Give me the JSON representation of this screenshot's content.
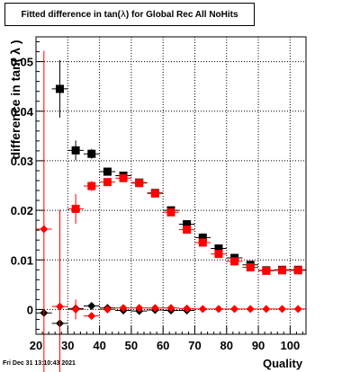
{
  "title": "Fitted difference in tan( λ ) for Global Rec All NoHits",
  "title_parts": {
    "pre": "Fitted difference in tan(",
    "lambda": " λ ",
    "post": ") for Global Rec All NoHits"
  },
  "footer": "Fri Dec 31 13:10:43 2021",
  "chart_data": {
    "type": "scatter",
    "xlabel": "Quality",
    "ylabel": "difference in tan( λ )",
    "xlim": [
      20,
      105
    ],
    "ylim": [
      -0.005,
      0.055
    ],
    "xticks": [
      "20",
      "30",
      "40",
      "50",
      "60",
      "70",
      "80",
      "90",
      "100"
    ],
    "yticks": [
      "0",
      "0.01",
      "0.02",
      "0.03",
      "0.04",
      "0.05"
    ],
    "grid": true,
    "series": [
      {
        "marker": "square",
        "color": "#000000",
        "points": [
          {
            "x": 27.5,
            "y": 0.0445,
            "yerr": 0.0058
          },
          {
            "x": 32.5,
            "y": 0.0321,
            "yerr": 0.002
          },
          {
            "x": 37.5,
            "y": 0.0314,
            "yerr": 0.001
          },
          {
            "x": 42.5,
            "y": 0.0278,
            "yerr": 0.0006
          },
          {
            "x": 47.5,
            "y": 0.027,
            "yerr": 0.0005
          },
          {
            "x": 52.5,
            "y": 0.0256,
            "yerr": 0.0005
          },
          {
            "x": 57.5,
            "y": 0.0235,
            "yerr": 0.0004
          },
          {
            "x": 62.5,
            "y": 0.02,
            "yerr": 0.0004
          },
          {
            "x": 67.5,
            "y": 0.0172,
            "yerr": 0.0004
          },
          {
            "x": 72.5,
            "y": 0.0145,
            "yerr": 0.0003
          },
          {
            "x": 77.5,
            "y": 0.0123,
            "yerr": 0.0003
          },
          {
            "x": 82.5,
            "y": 0.0104,
            "yerr": 0.0003
          },
          {
            "x": 87.5,
            "y": 0.009,
            "yerr": 0.0003
          },
          {
            "x": 92.5,
            "y": 0.0079,
            "yerr": 0.0003
          },
          {
            "x": 97.5,
            "y": 0.008,
            "yerr": 0.0003
          },
          {
            "x": 102.5,
            "y": 0.008,
            "yerr": 0.0003
          }
        ]
      },
      {
        "marker": "square",
        "color": "#ff0000",
        "points": [
          {
            "x": 32.5,
            "y": 0.0203,
            "yerr": 0.003
          },
          {
            "x": 37.5,
            "y": 0.0249,
            "yerr": 0.001
          },
          {
            "x": 42.5,
            "y": 0.0257,
            "yerr": 0.0005
          },
          {
            "x": 47.5,
            "y": 0.0265,
            "yerr": 0.0005
          },
          {
            "x": 52.5,
            "y": 0.0255,
            "yerr": 0.0004
          },
          {
            "x": 57.5,
            "y": 0.0234,
            "yerr": 0.0004
          },
          {
            "x": 62.5,
            "y": 0.0196,
            "yerr": 0.0004
          },
          {
            "x": 67.5,
            "y": 0.0161,
            "yerr": 0.0004
          },
          {
            "x": 72.5,
            "y": 0.0135,
            "yerr": 0.0003
          },
          {
            "x": 77.5,
            "y": 0.0112,
            "yerr": 0.0003
          },
          {
            "x": 82.5,
            "y": 0.0097,
            "yerr": 0.0003
          },
          {
            "x": 87.5,
            "y": 0.0085,
            "yerr": 0.0003
          },
          {
            "x": 92.5,
            "y": 0.0078,
            "yerr": 0.0003
          },
          {
            "x": 97.5,
            "y": 0.0079,
            "yerr": 0.0003
          },
          {
            "x": 102.5,
            "y": 0.0079,
            "yerr": 0.0003
          }
        ]
      },
      {
        "marker": "diamond",
        "color": "#000000",
        "points": [
          {
            "x": 22.5,
            "y": -0.0007,
            "yerr": 0.0
          },
          {
            "x": 27.5,
            "y": -0.0028,
            "yerr": 0.0006
          },
          {
            "x": 32.5,
            "y": 0.0002,
            "yerr": 0.0005
          },
          {
            "x": 37.5,
            "y": 0.0007,
            "yerr": 0.0004
          },
          {
            "x": 42.5,
            "y": 0.0003,
            "yerr": 0.0003
          },
          {
            "x": 47.5,
            "y": -0.0002,
            "yerr": 0.0003
          },
          {
            "x": 52.5,
            "y": -0.0003,
            "yerr": 0.0002
          },
          {
            "x": 57.5,
            "y": -0.0001,
            "yerr": 0.0002
          },
          {
            "x": 62.5,
            "y": -0.0002,
            "yerr": 0.0002
          },
          {
            "x": 67.5,
            "y": -0.0002,
            "yerr": 0.0002
          }
        ]
      },
      {
        "marker": "diamond",
        "color": "#ff0000",
        "points": [
          {
            "x": 22.5,
            "y": 0.0162,
            "yerr": 0.036
          },
          {
            "x": 27.5,
            "y": 0.0006,
            "yerr": 0.0195
          },
          {
            "x": 32.5,
            "y": 0.0,
            "yerr": 0.002
          },
          {
            "x": 37.5,
            "y": -0.0013,
            "yerr": 0.0006
          },
          {
            "x": 42.5,
            "y": 0.0,
            "yerr": 0.0003
          },
          {
            "x": 47.5,
            "y": 0.0003,
            "yerr": 0.0003
          },
          {
            "x": 52.5,
            "y": 0.0003,
            "yerr": 0.0002
          },
          {
            "x": 57.5,
            "y": 0.0003,
            "yerr": 0.0002
          },
          {
            "x": 62.5,
            "y": 0.0003,
            "yerr": 0.0002
          },
          {
            "x": 67.5,
            "y": 0.0002,
            "yerr": 0.0002
          },
          {
            "x": 72.5,
            "y": 0.0001,
            "yerr": 0.0002
          },
          {
            "x": 77.5,
            "y": 0.0001,
            "yerr": 0.0002
          },
          {
            "x": 82.5,
            "y": 0.0001,
            "yerr": 0.0002
          },
          {
            "x": 87.5,
            "y": 0.0001,
            "yerr": 0.0002
          },
          {
            "x": 92.5,
            "y": 0.0001,
            "yerr": 0.0002
          },
          {
            "x": 97.5,
            "y": 0.0001,
            "yerr": 0.0002
          },
          {
            "x": 102.5,
            "y": 0.0001,
            "yerr": 0.0002
          }
        ]
      }
    ]
  }
}
